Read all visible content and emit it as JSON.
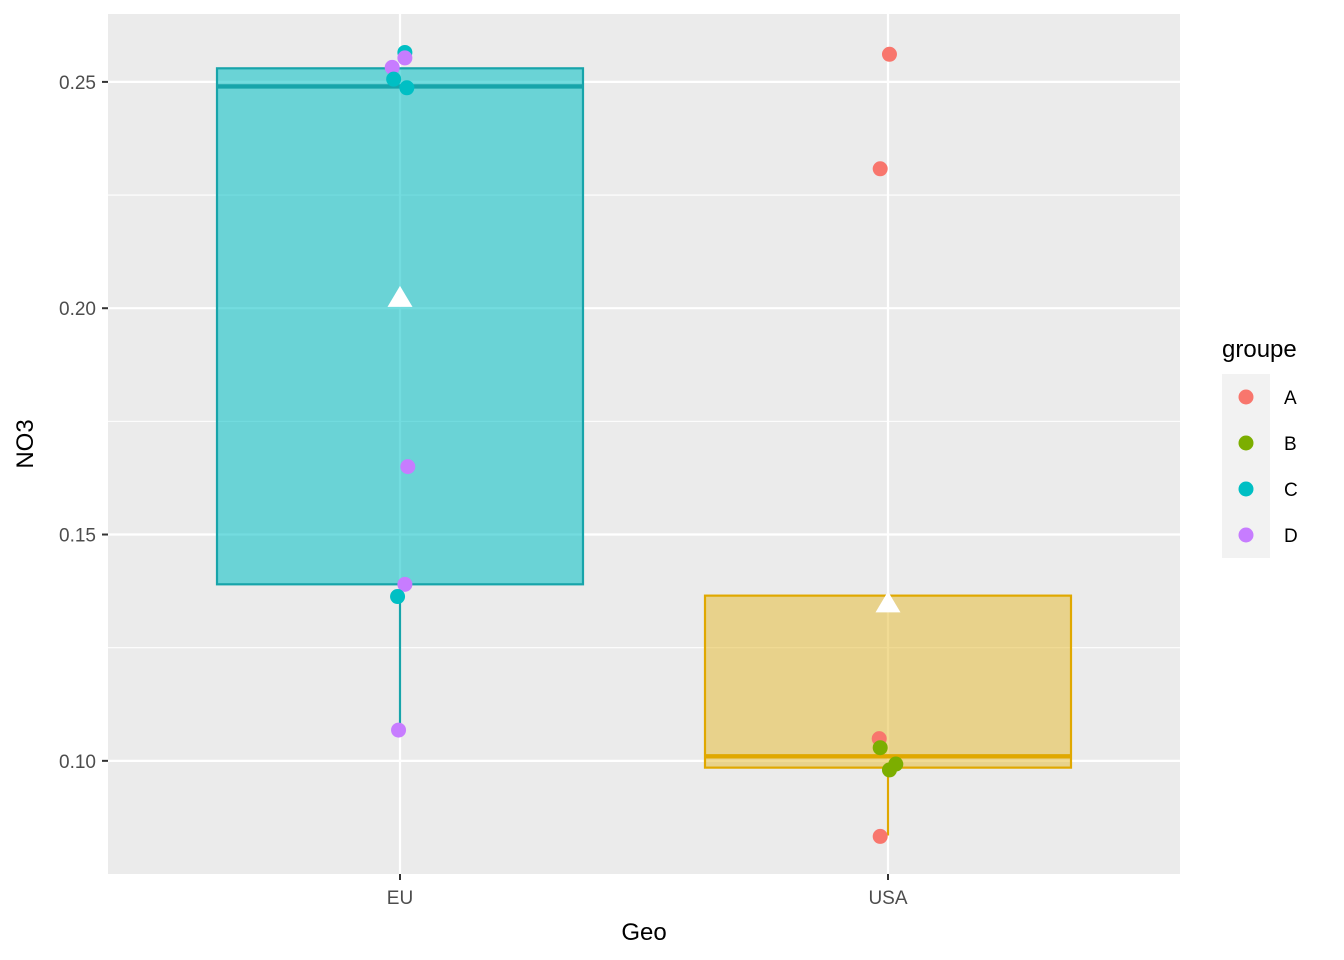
{
  "chart_data": {
    "type": "boxplot",
    "xlabel": "Geo",
    "ylabel": "NO3",
    "ylim": [
      0.075,
      0.265
    ],
    "y_ticks": [
      "0.10",
      "0.15",
      "0.20",
      "0.25"
    ],
    "y_tick_values": [
      0.1,
      0.15,
      0.2,
      0.25
    ],
    "y_minor_values": [
      0.125,
      0.175,
      0.225
    ],
    "grid": true,
    "legend": {
      "title": "groupe",
      "position": "right",
      "items": [
        {
          "label": "A",
          "color": "#F8766D"
        },
        {
          "label": "B",
          "color": "#7CAE00"
        },
        {
          "label": "C",
          "color": "#00BFC4"
        },
        {
          "label": "D",
          "color": "#C77CFF"
        }
      ]
    },
    "categories": [
      "EU",
      "USA"
    ],
    "boxes": [
      {
        "category": "EU",
        "q1": 0.139,
        "median": 0.249,
        "q3": 0.253,
        "whisker_low": 0.107,
        "whisker_high": 0.253,
        "mean": 0.2025,
        "fill": "#00BFC4",
        "stroke": "#17A4AA"
      },
      {
        "category": "USA",
        "q1": 0.0985,
        "median": 0.101,
        "q3": 0.1365,
        "whisker_low": 0.0835,
        "whisker_high": 0.1365,
        "mean": 0.135,
        "fill": "#E6BE3C",
        "stroke": "#E0A800"
      }
    ],
    "points": [
      {
        "category": "EU",
        "group": "C",
        "y": 0.2565,
        "jitter": 0.01
      },
      {
        "category": "EU",
        "group": "D",
        "y": 0.2553,
        "jitter": 0.01
      },
      {
        "category": "EU",
        "group": "D",
        "y": 0.2532,
        "jitter": -0.016
      },
      {
        "category": "EU",
        "group": "C",
        "y": 0.2506,
        "jitter": -0.013
      },
      {
        "category": "EU",
        "group": "C",
        "y": 0.2487,
        "jitter": 0.014
      },
      {
        "category": "EU",
        "group": "D",
        "y": 0.165,
        "jitter": 0.016
      },
      {
        "category": "EU",
        "group": "D",
        "y": 0.139,
        "jitter": 0.01
      },
      {
        "category": "EU",
        "group": "C",
        "y": 0.1363,
        "jitter": -0.005
      },
      {
        "category": "EU",
        "group": "D",
        "y": 0.1068,
        "jitter": -0.003
      },
      {
        "category": "USA",
        "group": "A",
        "y": 0.2561,
        "jitter": 0.003
      },
      {
        "category": "USA",
        "group": "A",
        "y": 0.2308,
        "jitter": -0.016
      },
      {
        "category": "USA",
        "group": "A",
        "y": 0.1049,
        "jitter": -0.018
      },
      {
        "category": "USA",
        "group": "B",
        "y": 0.1029,
        "jitter": -0.016
      },
      {
        "category": "USA",
        "group": "B",
        "y": 0.0993,
        "jitter": 0.016
      },
      {
        "category": "USA",
        "group": "B",
        "y": 0.098,
        "jitter": 0.003
      },
      {
        "category": "USA",
        "group": "A",
        "y": 0.0833,
        "jitter": -0.016
      }
    ]
  }
}
